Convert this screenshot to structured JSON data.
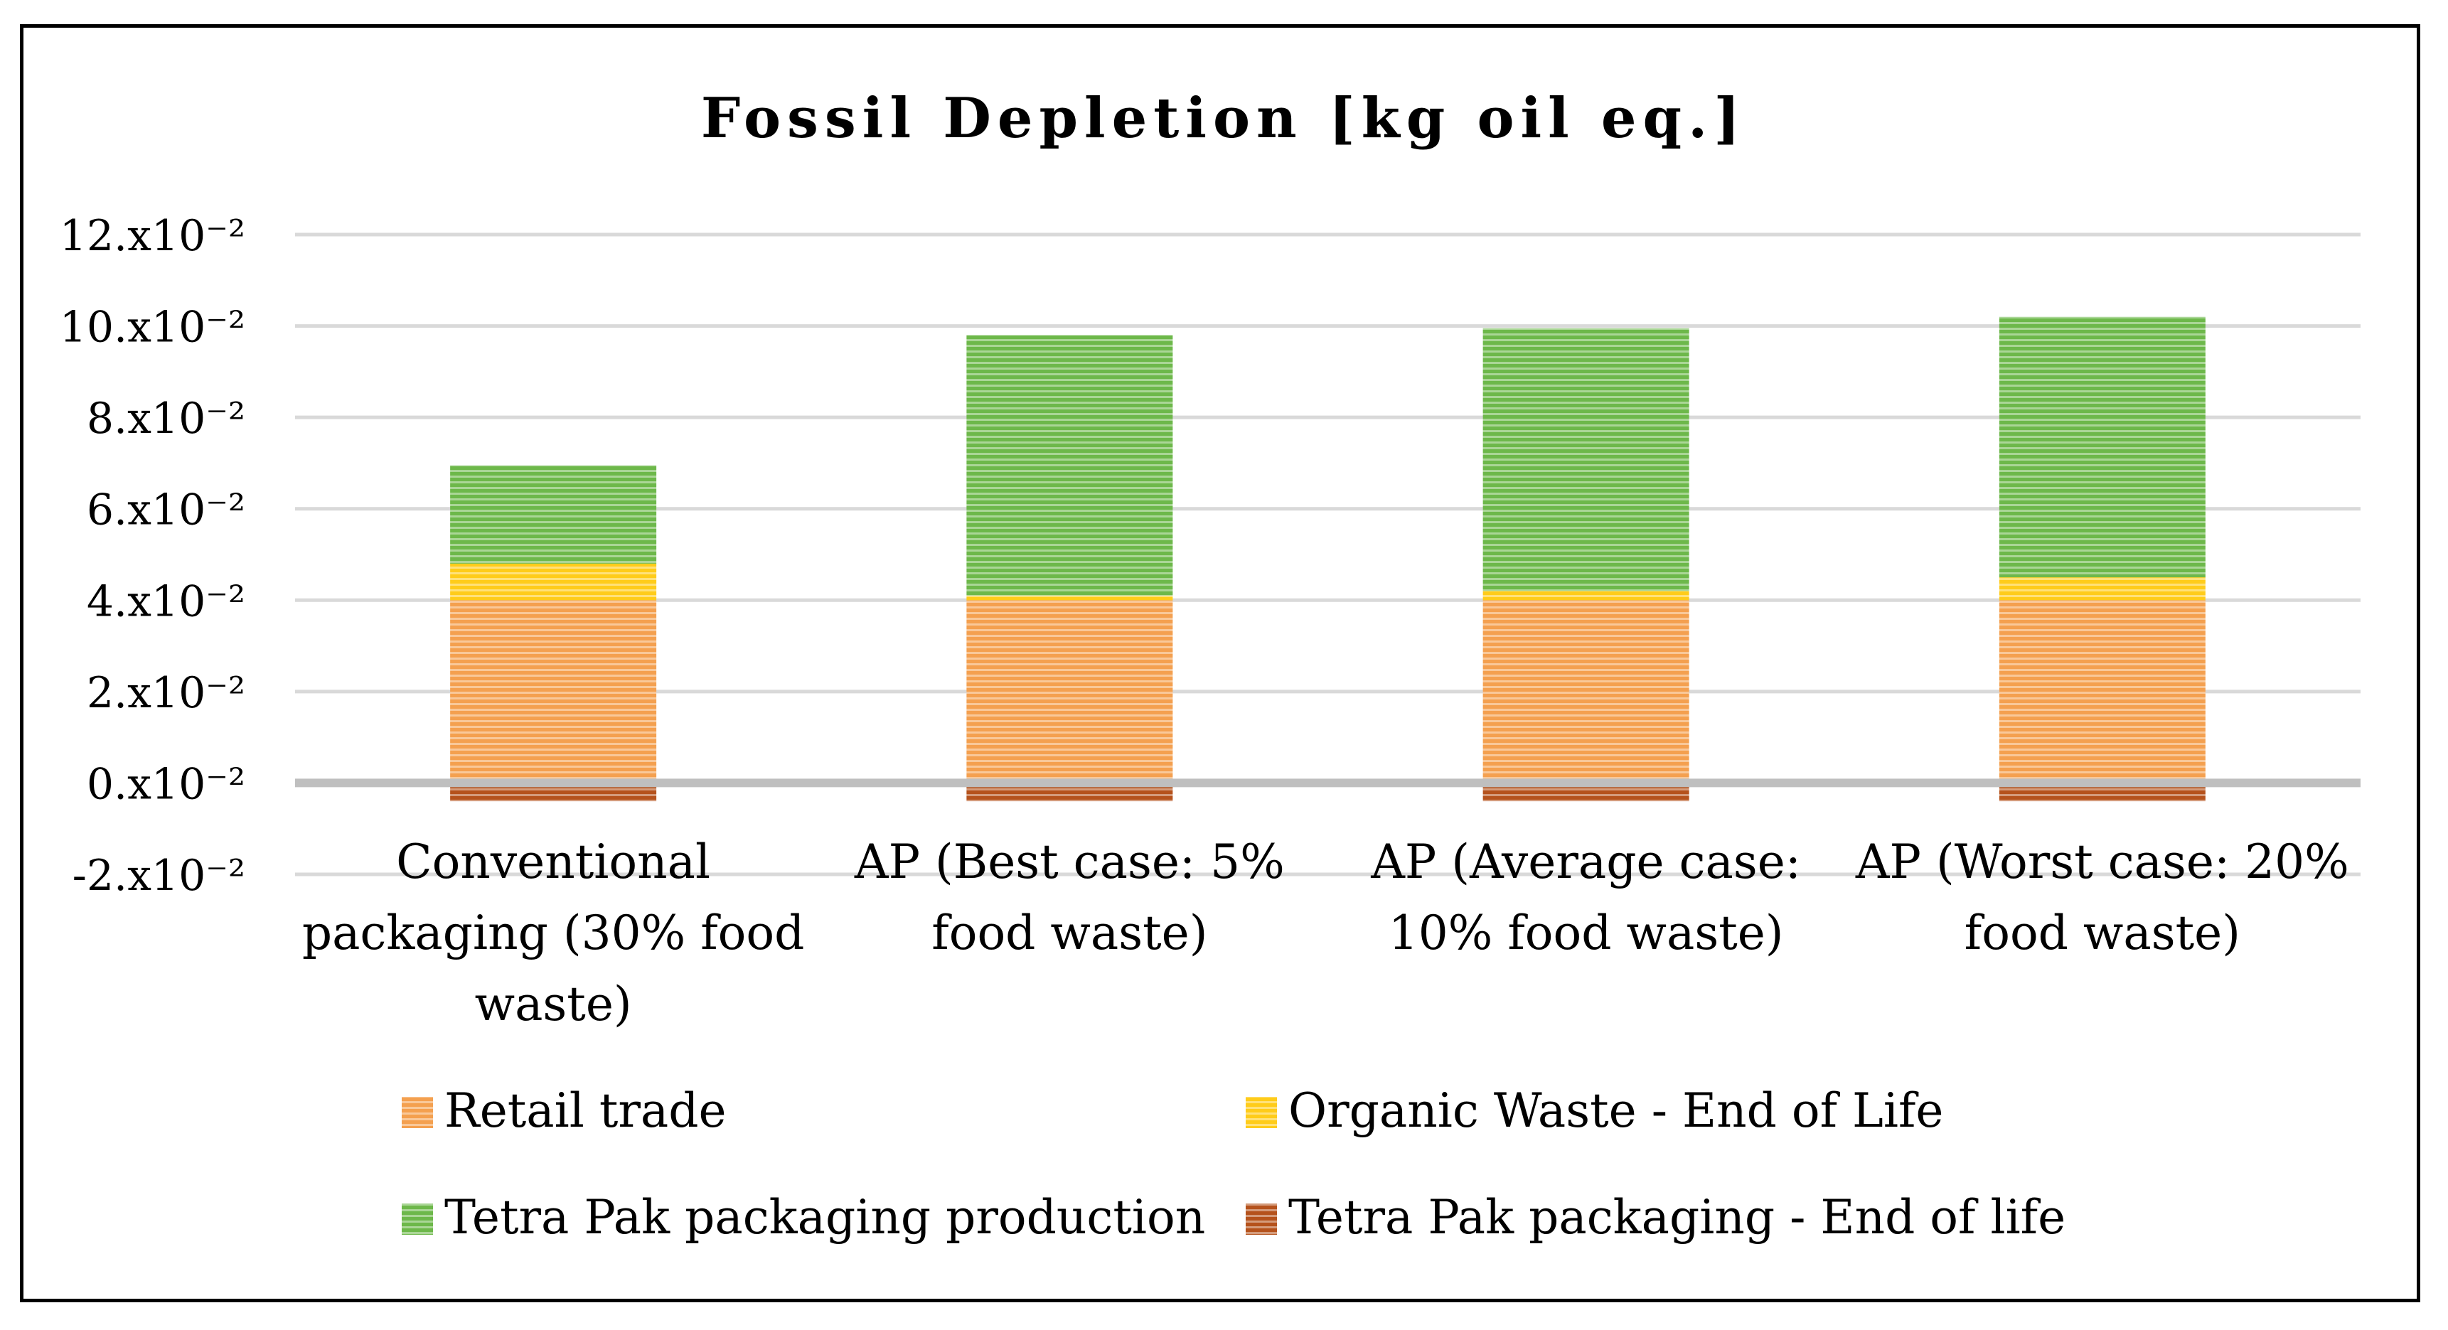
{
  "chart_data": {
    "type": "stacked-bar",
    "title": "Fossil Depletion [kg oil eq.]",
    "xlabel": "",
    "ylabel": "",
    "ylim": [
      -2,
      12
    ],
    "y_unit_suffix": ".x10⁻²",
    "yticks": [
      -2,
      0,
      2,
      4,
      6,
      8,
      10,
      12
    ],
    "ytick_labels": [
      "-2.x10⁻²",
      "0.x10⁻²",
      "2.x10⁻²",
      "4.x10⁻²",
      "6.x10⁻²",
      "8.x10⁻²",
      "10.x10⁻²",
      "12.x10⁻²"
    ],
    "grid": true,
    "legend_position": "bottom",
    "categories": [
      [
        "Conventional",
        "packaging (30% food",
        "waste)"
      ],
      [
        "AP (Best case: 5%",
        "food waste)"
      ],
      [
        "AP (Average case:",
        "10% food waste)"
      ],
      [
        "AP (Worst case: 20%",
        "food waste)"
      ]
    ],
    "series": [
      {
        "name": "Retail trade",
        "color": "#F4A04F",
        "values": [
          4.0,
          4.0,
          4.0,
          4.0
        ]
      },
      {
        "name": "Organic Waste - End of Life",
        "color": "#FFCC1A",
        "values": [
          0.8,
          0.1,
          0.2,
          0.5
        ]
      },
      {
        "name": "Tetra Pak packaging production",
        "color": "#6DB84A",
        "values": [
          2.15,
          5.7,
          5.75,
          5.7
        ]
      },
      {
        "name": "Tetra Pak packaging - End of life",
        "color": "#B5521C",
        "values": [
          -0.4,
          -0.4,
          -0.4,
          -0.4
        ]
      }
    ],
    "legend_order": [
      0,
      1,
      2,
      3
    ]
  }
}
